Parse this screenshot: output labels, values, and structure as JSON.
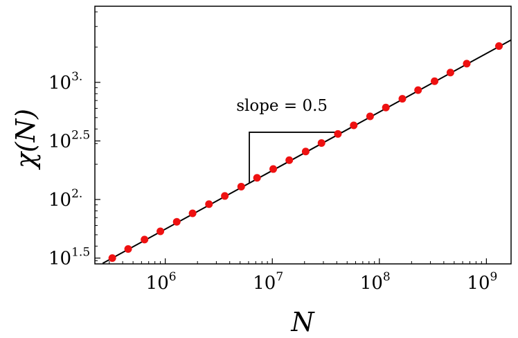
{
  "chart_data": {
    "type": "scatter",
    "xscale": "log",
    "yscale": "log",
    "xlim": [
      220000.0,
      1700000000.0
    ],
    "ylim": [
      28.2,
      4467
    ],
    "xlabel": "N",
    "ylabel": "χ(N)",
    "grid": false,
    "legend": "none",
    "x_ticks": [
      {
        "value": 1000000.0,
        "base": "10",
        "exp": "6"
      },
      {
        "value": 10000000.0,
        "base": "10",
        "exp": "7"
      },
      {
        "value": 100000000.0,
        "base": "10",
        "exp": "8"
      },
      {
        "value": 1000000000.0,
        "base": "10",
        "exp": "9"
      }
    ],
    "y_ticks": [
      {
        "value": 31.62,
        "base": "10",
        "exp": "1.5"
      },
      {
        "value": 100,
        "base": "10",
        "exp": "2."
      },
      {
        "value": 316.2,
        "base": "10",
        "exp": "2.5"
      },
      {
        "value": 1000,
        "base": "10",
        "exp": "3."
      }
    ],
    "series": [
      {
        "color": "#ee1111",
        "points": [
          [
            320000.0,
            31.6
          ],
          [
            450000.0,
            37.8
          ],
          [
            640000.0,
            45.5
          ],
          [
            900000.0,
            53.5
          ],
          [
            1280000.0,
            64.5
          ],
          [
            1800000.0,
            76.2
          ],
          [
            2560000.0,
            91.2
          ],
          [
            3600000.0,
            107.2
          ],
          [
            5120000.0,
            128.8
          ],
          [
            7200000.0,
            153.1
          ],
          [
            10200000.0,
            182.0
          ],
          [
            14400000.0,
            216.8
          ],
          [
            20500000.0,
            257.0
          ],
          [
            28800000.0,
            303.6
          ],
          [
            41000000.0,
            363.1
          ],
          [
            57600000.0,
            429.5
          ],
          [
            81900000.0,
            512.9
          ],
          [
            115000000.0,
            609.5
          ],
          [
            164000000.0,
            724.4
          ],
          [
            230000000.0,
            858.9
          ],
          [
            328000000.0,
            1023.0
          ],
          [
            461000000.0,
            1213.0
          ],
          [
            655000000.0,
            1445.0
          ],
          [
            1310000000.0,
            2042.0
          ]
        ]
      }
    ],
    "fit_line": {
      "x": [
        260000.0,
        1700000000.0
      ],
      "y": [
        28.5,
        2301.0
      ],
      "color": "#000000"
    },
    "slope_triangle": {
      "label": "slope = 0.5",
      "x_start": 6100000.0,
      "x_end": 45000000.0,
      "y_low": 138.0,
      "y_high": 375.0
    }
  }
}
